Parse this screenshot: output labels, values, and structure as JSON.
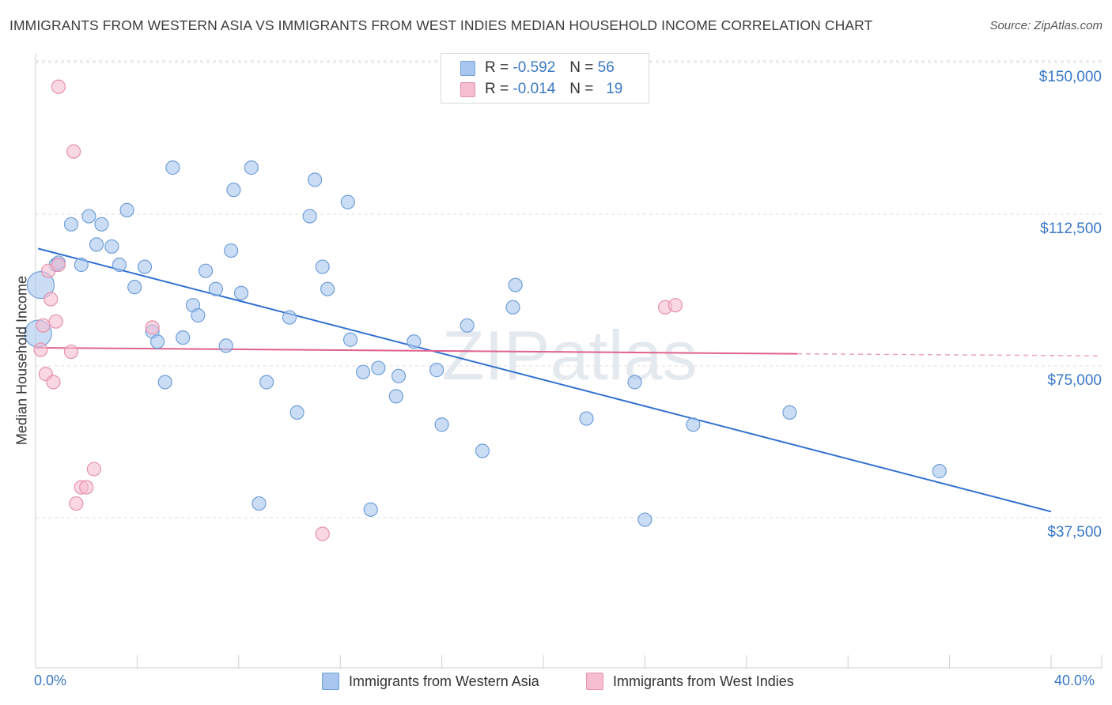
{
  "header": {
    "title": "IMMIGRANTS FROM WESTERN ASIA VS IMMIGRANTS FROM WEST INDIES MEDIAN HOUSEHOLD INCOME CORRELATION CHART",
    "source": "Source: ZipAtlas.com"
  },
  "watermark": "ZIPatlas",
  "legend": {
    "r_label": "R =",
    "n_label": "N =",
    "rows": [
      {
        "r": "-0.592",
        "n": "56"
      },
      {
        "r": "-0.014",
        "n": "19"
      }
    ]
  },
  "chart_data": {
    "type": "scatter",
    "title": "IMMIGRANTS FROM WESTERN ASIA VS IMMIGRANTS FROM WEST INDIES MEDIAN HOUSEHOLD INCOME CORRELATION CHART",
    "xlabel": "",
    "ylabel": "Median Household Income",
    "xlim": [
      0,
      40
    ],
    "ylim": [
      0,
      155000
    ],
    "x_tick_labels": [
      "0.0%",
      "40.0%"
    ],
    "y_tick_labels": [
      "$150,000",
      "$112,500",
      "$75,000",
      "$37,500"
    ],
    "y_tick_values": [
      150000,
      112500,
      75000,
      37500
    ],
    "grid": true,
    "legend_position": "top-center",
    "series": [
      {
        "name": "Immigrants from Western Asia",
        "color": "#a9c7ee",
        "stroke": "#6f9fd8",
        "line_color": "#2f6fd0",
        "r": -0.592,
        "n": 56,
        "trend": {
          "x": [
            0.1,
            40.0
          ],
          "y": [
            104000,
            39000
          ]
        },
        "points": [
          {
            "x": 0.2,
            "y": 95000,
            "big": true
          },
          {
            "x": 0.1,
            "y": 83000,
            "big": true
          },
          {
            "x": 0.8,
            "y": 100000
          },
          {
            "x": 0.9,
            "y": 100500
          },
          {
            "x": 1.4,
            "y": 110000
          },
          {
            "x": 1.8,
            "y": 100000
          },
          {
            "x": 2.1,
            "y": 112000
          },
          {
            "x": 2.4,
            "y": 105000
          },
          {
            "x": 2.6,
            "y": 110000
          },
          {
            "x": 3.0,
            "y": 104500
          },
          {
            "x": 3.3,
            "y": 100000
          },
          {
            "x": 3.6,
            "y": 113500
          },
          {
            "x": 3.9,
            "y": 94500
          },
          {
            "x": 4.3,
            "y": 99500
          },
          {
            "x": 4.6,
            "y": 83500
          },
          {
            "x": 4.8,
            "y": 81000
          },
          {
            "x": 5.1,
            "y": 71000
          },
          {
            "x": 5.4,
            "y": 124000
          },
          {
            "x": 5.8,
            "y": 82000
          },
          {
            "x": 6.2,
            "y": 90000
          },
          {
            "x": 6.4,
            "y": 87500
          },
          {
            "x": 6.7,
            "y": 98500
          },
          {
            "x": 7.1,
            "y": 94000
          },
          {
            "x": 7.5,
            "y": 80000
          },
          {
            "x": 7.7,
            "y": 103500
          },
          {
            "x": 7.8,
            "y": 118500
          },
          {
            "x": 8.1,
            "y": 93000
          },
          {
            "x": 8.5,
            "y": 124000
          },
          {
            "x": 8.8,
            "y": 41000
          },
          {
            "x": 9.1,
            "y": 71000
          },
          {
            "x": 10.0,
            "y": 87000
          },
          {
            "x": 10.3,
            "y": 63500
          },
          {
            "x": 10.8,
            "y": 112000
          },
          {
            "x": 11.0,
            "y": 121000
          },
          {
            "x": 11.3,
            "y": 99500
          },
          {
            "x": 11.5,
            "y": 94000
          },
          {
            "x": 12.3,
            "y": 115500
          },
          {
            "x": 12.4,
            "y": 81500
          },
          {
            "x": 12.9,
            "y": 73500
          },
          {
            "x": 13.2,
            "y": 39500
          },
          {
            "x": 13.5,
            "y": 74500
          },
          {
            "x": 14.2,
            "y": 67500
          },
          {
            "x": 14.3,
            "y": 72500
          },
          {
            "x": 14.9,
            "y": 81000
          },
          {
            "x": 15.8,
            "y": 74000
          },
          {
            "x": 16.0,
            "y": 60500
          },
          {
            "x": 17.0,
            "y": 85000
          },
          {
            "x": 17.6,
            "y": 54000
          },
          {
            "x": 18.8,
            "y": 89500
          },
          {
            "x": 18.9,
            "y": 95000
          },
          {
            "x": 21.7,
            "y": 62000
          },
          {
            "x": 23.6,
            "y": 71000
          },
          {
            "x": 24.0,
            "y": 37000
          },
          {
            "x": 25.9,
            "y": 60500
          },
          {
            "x": 29.7,
            "y": 63500
          },
          {
            "x": 35.6,
            "y": 49000
          }
        ]
      },
      {
        "name": "Immigrants from West Indies",
        "color": "#f6bed0",
        "stroke": "#e591ad",
        "line_color": "#e0628e",
        "r": -0.014,
        "n": 19,
        "trend": {
          "x": [
            0.0,
            30.0
          ],
          "y": 79500,
          "y_end": 78000,
          "dashed_to": 40.0
        },
        "points": [
          {
            "x": 0.2,
            "y": 79000
          },
          {
            "x": 0.3,
            "y": 85000
          },
          {
            "x": 0.4,
            "y": 73000
          },
          {
            "x": 0.5,
            "y": 98500
          },
          {
            "x": 0.6,
            "y": 91500
          },
          {
            "x": 0.7,
            "y": 71000
          },
          {
            "x": 0.8,
            "y": 86000
          },
          {
            "x": 0.9,
            "y": 100000
          },
          {
            "x": 0.9,
            "y": 144000
          },
          {
            "x": 1.4,
            "y": 78500
          },
          {
            "x": 1.5,
            "y": 128000
          },
          {
            "x": 1.6,
            "y": 41000
          },
          {
            "x": 1.8,
            "y": 45000
          },
          {
            "x": 2.0,
            "y": 45000
          },
          {
            "x": 2.3,
            "y": 49500
          },
          {
            "x": 4.6,
            "y": 84500
          },
          {
            "x": 11.3,
            "y": 33500
          },
          {
            "x": 24.8,
            "y": 89500
          },
          {
            "x": 25.2,
            "y": 90000
          }
        ]
      }
    ]
  },
  "bottom_legend": [
    {
      "label": "Immigrants from Western Asia"
    },
    {
      "label": "Immigrants from West Indies"
    }
  ]
}
